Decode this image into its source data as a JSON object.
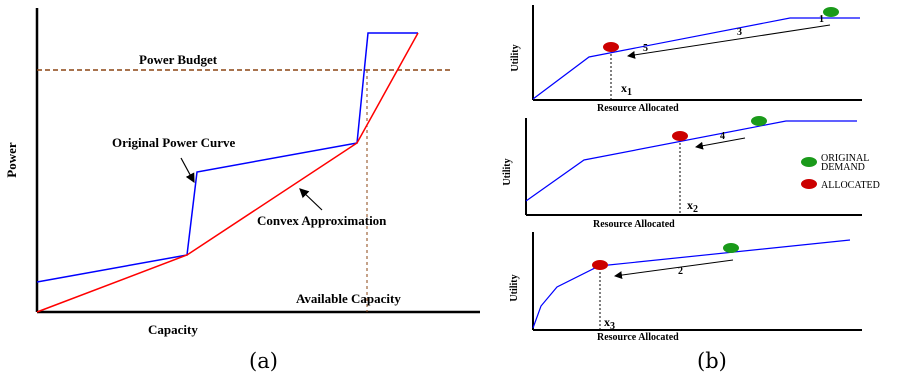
{
  "panel_a": {
    "power_budget": "Power Budget",
    "original_curve": "Original Power Curve",
    "convex_approx": "Convex Approximation",
    "available_capacity": "Available Capacity",
    "y_axis": "Power",
    "x_axis": "Capacity",
    "caption": "(a)"
  },
  "panel_b": {
    "caption": "(b)",
    "legend": {
      "original_demand": [
        "ORIGINAL",
        "DEMAND"
      ],
      "allocated": "ALLOCATED"
    },
    "plots": [
      {
        "ylabel": "Utility",
        "xlabel": "Resource Allocated",
        "x_marker": "x",
        "x_sub": "1",
        "arrow_labels": [
          "1",
          "3",
          "5"
        ]
      },
      {
        "ylabel": "Utility",
        "xlabel": "Resource Allocated",
        "x_marker": "x",
        "x_sub": "2",
        "arrow_labels": [
          "4"
        ]
      },
      {
        "ylabel": "Utility",
        "xlabel": "Resource Allocated",
        "x_marker": "x",
        "x_sub": "3",
        "arrow_labels": [
          "2"
        ]
      }
    ]
  },
  "colors": {
    "blue": "#0000ff",
    "red": "#ff0000",
    "budget": "#8b4513",
    "green": "#1a9a1a",
    "allocated": "#cc0000"
  }
}
